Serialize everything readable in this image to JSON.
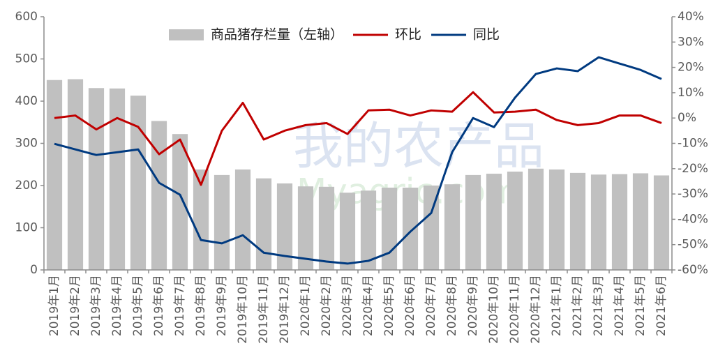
{
  "chart_data": {
    "type": "bar_line",
    "categories": [
      "2019年1月",
      "2019年2月",
      "2019年3月",
      "2019年4月",
      "2019年5月",
      "2019年6月",
      "2019年7月",
      "2019年8月",
      "2019年9月",
      "2019年10月",
      "2019年11月",
      "2019年12月",
      "2020年1月",
      "2020年2月",
      "2020年3月",
      "2020年4月",
      "2020年5月",
      "2020年6月",
      "2020年7月",
      "2020年8月",
      "2020年9月",
      "2020年10月",
      "2020年11月",
      "2020年12月",
      "2021年1月",
      "2021年2月",
      "2021年3月",
      "2021年4月",
      "2021年5月",
      "2021年6月"
    ],
    "series": [
      {
        "name": "商品猪存栏量（左轴）",
        "type": "bar",
        "color": "#c0c0c0",
        "values": [
          450,
          452,
          431,
          430,
          413,
          353,
          322,
          238,
          225,
          238,
          217,
          205,
          198,
          197,
          183,
          188,
          195,
          195,
          200,
          203,
          225,
          228,
          233,
          240,
          238,
          230,
          226,
          227,
          229,
          224
        ]
      },
      {
        "name": "环比",
        "type": "line",
        "axis": "y2",
        "color": "#c00000",
        "values": [
          0,
          1,
          -4.5,
          0,
          -3.5,
          -14.3,
          -8.5,
          -26.4,
          -5,
          6,
          -8.5,
          -5,
          -2.8,
          -2,
          -6.3,
          3,
          3.3,
          1,
          3,
          2.5,
          10.2,
          2.2,
          2.5,
          3.3,
          -0.8,
          -2.8,
          -2,
          1,
          1,
          -2
        ]
      },
      {
        "name": "同比",
        "type": "line",
        "axis": "y2",
        "color": "#003a80",
        "values": [
          -10.2,
          -12.4,
          -14.6,
          -13.5,
          -12.4,
          -25.6,
          -30.3,
          -48.2,
          -49.5,
          -46.3,
          -53.2,
          -54.5,
          -55.6,
          -56.7,
          -57.5,
          -56.4,
          -53.2,
          -44.9,
          -37.5,
          -13.5,
          0,
          -3.6,
          8,
          17.4,
          19.6,
          18.5,
          24,
          21.5,
          19,
          15.4
        ]
      }
    ],
    "ylim": [
      0,
      600
    ],
    "yticks": [
      0,
      100,
      200,
      300,
      400,
      500,
      600
    ],
    "y2lim": [
      -60,
      40
    ],
    "y2ticks": [
      {
        "value": -60,
        "label": "-60%"
      },
      {
        "value": -50,
        "label": "-50%"
      },
      {
        "value": -40,
        "label": "-40%"
      },
      {
        "value": -30,
        "label": "-30%"
      },
      {
        "value": -20,
        "label": "-20%"
      },
      {
        "value": -10,
        "label": "-10%"
      },
      {
        "value": 0,
        "label": "0%"
      },
      {
        "value": 10,
        "label": "10%"
      },
      {
        "value": 20,
        "label": "20%"
      },
      {
        "value": 30,
        "label": "30%"
      },
      {
        "value": 40,
        "label": "40%"
      }
    ],
    "watermark": [
      "我的农产品",
      "Myagric.com"
    ]
  }
}
